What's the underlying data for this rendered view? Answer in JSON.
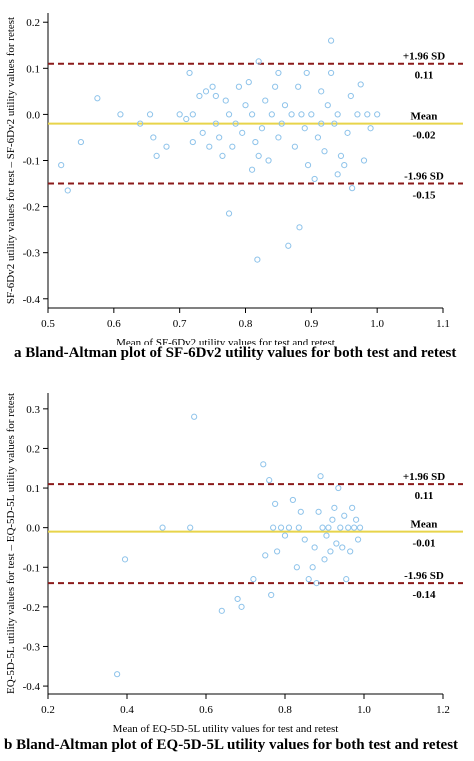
{
  "figure": {
    "caption_a": "a Bland-Altman plot of SF-6Dv2 utility values for both test and retest",
    "caption_b": "b Bland-Altman plot of EQ-5D-5L utility values for both test and retest"
  },
  "colors": {
    "points": "#8ec3ea",
    "mean_line": "#e8d44a",
    "sd_line": "#8b1a1a",
    "axis": "#000000"
  },
  "chart_data": [
    {
      "type": "scatter",
      "title": "",
      "xlabel": "Mean of SF-6Dv2 utility values for test and retest",
      "ylabel": "SF-6Dv2 utility values for test – SF-6Dv2 utility values for retest",
      "xlim": [
        0.5,
        1.1
      ],
      "ylim": [
        -0.42,
        0.22
      ],
      "xticks": [
        "0.5",
        "0.6",
        "0.7",
        "0.8",
        "0.9",
        "1.0",
        "1.1"
      ],
      "yticks": [
        "-0.4",
        "-0.3",
        "-0.2",
        "-0.1",
        "0.0",
        "0.1",
        "0.2"
      ],
      "grid": false,
      "reference_lines": {
        "upper": {
          "label": "+1.96 SD",
          "value": 0.11,
          "value_label": "0.11"
        },
        "mean": {
          "label": "Mean",
          "value": -0.02,
          "value_label": "-0.02"
        },
        "lower": {
          "label": "-1.96 SD",
          "value": -0.15,
          "value_label": "-0.15"
        }
      },
      "points": [
        [
          0.52,
          -0.11
        ],
        [
          0.53,
          -0.165
        ],
        [
          0.55,
          -0.06
        ],
        [
          0.575,
          0.035
        ],
        [
          0.61,
          0.0
        ],
        [
          0.64,
          -0.02
        ],
        [
          0.655,
          0.0
        ],
        [
          0.66,
          -0.05
        ],
        [
          0.665,
          -0.09
        ],
        [
          0.68,
          -0.07
        ],
        [
          0.7,
          0.0
        ],
        [
          0.71,
          -0.01
        ],
        [
          0.715,
          0.09
        ],
        [
          0.72,
          0.0
        ],
        [
          0.72,
          -0.06
        ],
        [
          0.73,
          0.04
        ],
        [
          0.735,
          -0.04
        ],
        [
          0.74,
          0.05
        ],
        [
          0.745,
          -0.07
        ],
        [
          0.75,
          0.06
        ],
        [
          0.755,
          0.04
        ],
        [
          0.755,
          -0.02
        ],
        [
          0.76,
          -0.05
        ],
        [
          0.765,
          -0.09
        ],
        [
          0.77,
          0.03
        ],
        [
          0.775,
          0.0
        ],
        [
          0.775,
          -0.215
        ],
        [
          0.78,
          -0.07
        ],
        [
          0.785,
          -0.02
        ],
        [
          0.79,
          0.06
        ],
        [
          0.795,
          -0.04
        ],
        [
          0.8,
          0.02
        ],
        [
          0.805,
          0.07
        ],
        [
          0.81,
          0.0
        ],
        [
          0.81,
          -0.12
        ],
        [
          0.815,
          -0.06
        ],
        [
          0.82,
          0.115
        ],
        [
          0.82,
          -0.09
        ],
        [
          0.825,
          -0.03
        ],
        [
          0.818,
          -0.315
        ],
        [
          0.83,
          0.03
        ],
        [
          0.835,
          -0.1
        ],
        [
          0.84,
          0.0
        ],
        [
          0.845,
          0.06
        ],
        [
          0.85,
          0.09
        ],
        [
          0.85,
          -0.05
        ],
        [
          0.855,
          -0.02
        ],
        [
          0.86,
          0.02
        ],
        [
          0.865,
          -0.285
        ],
        [
          0.87,
          0.0
        ],
        [
          0.875,
          -0.07
        ],
        [
          0.88,
          0.06
        ],
        [
          0.882,
          -0.245
        ],
        [
          0.885,
          0.0
        ],
        [
          0.89,
          -0.03
        ],
        [
          0.893,
          0.09
        ],
        [
          0.895,
          -0.11
        ],
        [
          0.9,
          0.0
        ],
        [
          0.905,
          -0.14
        ],
        [
          0.91,
          -0.05
        ],
        [
          0.915,
          -0.02
        ],
        [
          0.915,
          0.05
        ],
        [
          0.92,
          -0.08
        ],
        [
          0.925,
          0.02
        ],
        [
          0.93,
          0.09
        ],
        [
          0.93,
          0.16
        ],
        [
          0.935,
          -0.02
        ],
        [
          0.94,
          0.0
        ],
        [
          0.94,
          -0.13
        ],
        [
          0.945,
          -0.09
        ],
        [
          0.95,
          -0.11
        ],
        [
          0.955,
          -0.04
        ],
        [
          0.96,
          0.04
        ],
        [
          0.962,
          -0.16
        ],
        [
          0.97,
          0.0
        ],
        [
          0.975,
          0.065
        ],
        [
          0.98,
          -0.1
        ],
        [
          0.985,
          0.0
        ],
        [
          0.99,
          -0.03
        ],
        [
          1.0,
          0.0
        ]
      ]
    },
    {
      "type": "scatter",
      "title": "",
      "xlabel": "Mean of EQ-5D-5L utility values for test and retest",
      "ylabel": "EQ-5D-5L utility values for test – EQ-5D-5L utility values for retest",
      "xlim": [
        0.2,
        1.2
      ],
      "ylim": [
        -0.42,
        0.34
      ],
      "xticks": [
        "0.2",
        "0.4",
        "0.6",
        "0.8",
        "1.0",
        "1.2"
      ],
      "yticks": [
        "-0.4",
        "-0.3",
        "-0.2",
        "-0.1",
        "0.0",
        "0.1",
        "0.2",
        "0.3"
      ],
      "grid": false,
      "reference_lines": {
        "upper": {
          "label": "+1.96 SD",
          "value": 0.11,
          "value_label": "0.11"
        },
        "mean": {
          "label": "Mean",
          "value": -0.01,
          "value_label": "-0.01"
        },
        "lower": {
          "label": "-1.96 SD",
          "value": -0.14,
          "value_label": "-0.14"
        }
      },
      "points": [
        [
          0.375,
          -0.37
        ],
        [
          0.395,
          -0.08
        ],
        [
          0.49,
          0.0
        ],
        [
          0.56,
          0.0
        ],
        [
          0.57,
          0.28
        ],
        [
          0.64,
          -0.21
        ],
        [
          0.68,
          -0.18
        ],
        [
          0.69,
          -0.2
        ],
        [
          0.72,
          -0.13
        ],
        [
          0.745,
          0.16
        ],
        [
          0.75,
          -0.07
        ],
        [
          0.76,
          0.12
        ],
        [
          0.765,
          -0.17
        ],
        [
          0.77,
          0.0
        ],
        [
          0.775,
          0.06
        ],
        [
          0.78,
          -0.06
        ],
        [
          0.79,
          0.0
        ],
        [
          0.8,
          -0.02
        ],
        [
          0.81,
          0.0
        ],
        [
          0.82,
          0.07
        ],
        [
          0.83,
          -0.1
        ],
        [
          0.835,
          0.0
        ],
        [
          0.84,
          0.04
        ],
        [
          0.85,
          -0.03
        ],
        [
          0.86,
          -0.13
        ],
        [
          0.87,
          -0.1
        ],
        [
          0.875,
          -0.05
        ],
        [
          0.88,
          -0.14
        ],
        [
          0.885,
          0.04
        ],
        [
          0.89,
          0.13
        ],
        [
          0.895,
          0.0
        ],
        [
          0.9,
          -0.08
        ],
        [
          0.905,
          -0.02
        ],
        [
          0.91,
          0.0
        ],
        [
          0.915,
          -0.06
        ],
        [
          0.92,
          0.02
        ],
        [
          0.925,
          0.05
        ],
        [
          0.93,
          -0.04
        ],
        [
          0.935,
          0.1
        ],
        [
          0.94,
          0.0
        ],
        [
          0.945,
          -0.05
        ],
        [
          0.95,
          0.03
        ],
        [
          0.955,
          -0.13
        ],
        [
          0.96,
          0.0
        ],
        [
          0.965,
          -0.06
        ],
        [
          0.97,
          0.05
        ],
        [
          0.975,
          0.0
        ],
        [
          0.98,
          0.02
        ],
        [
          0.985,
          -0.03
        ],
        [
          0.99,
          0.0
        ]
      ]
    }
  ]
}
